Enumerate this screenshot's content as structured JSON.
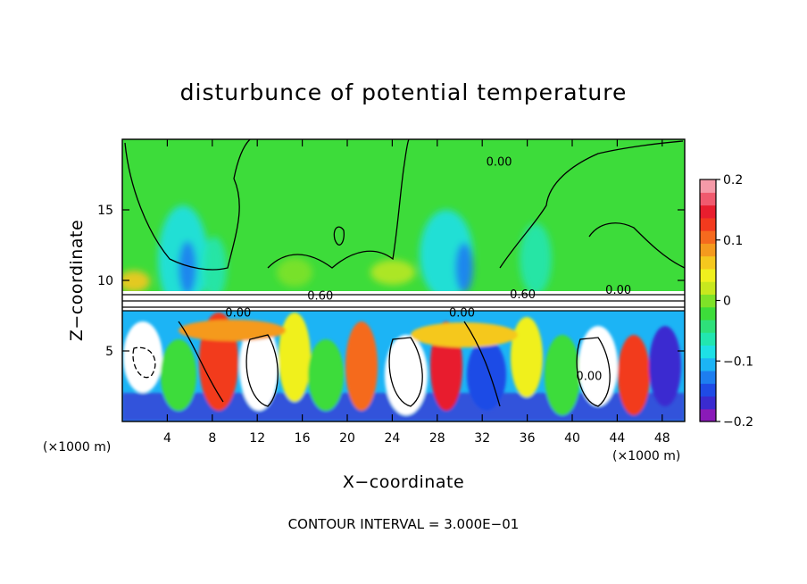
{
  "chart_data": {
    "type": "heatmap",
    "title": "disturbunce of potential temperature",
    "xlabel": "X−coordinate",
    "ylabel": "Z−coordinate",
    "x_unit": "(×1000 m)",
    "z_unit": "(×1000 m)",
    "xlim": [
      0,
      50
    ],
    "ylim": [
      0,
      20
    ],
    "x_ticks": [
      4,
      8,
      12,
      16,
      20,
      24,
      28,
      32,
      36,
      40,
      44,
      48
    ],
    "x_tick_labels": [
      "4",
      "8",
      "12",
      "16",
      "20",
      "24",
      "28",
      "32",
      "36",
      "40",
      "44",
      "48"
    ],
    "y_ticks": [
      5,
      10,
      15
    ],
    "y_tick_labels": [
      "5",
      "10",
      "15"
    ],
    "colorbar": {
      "range": [
        -0.2,
        0.2
      ],
      "ticks": [
        -0.2,
        -0.1,
        0,
        0.1,
        0.2
      ],
      "tick_labels": [
        "−0.2",
        "−0.1",
        "0",
        "0.1",
        "0.2"
      ],
      "colors": [
        "#8a1ab8",
        "#3a2bd0",
        "#1f4be6",
        "#1d7ef0",
        "#1cb4f5",
        "#1ee0e6",
        "#22e6b0",
        "#2ee07a",
        "#3ddc3a",
        "#7ee228",
        "#c8e81e",
        "#f0f01e",
        "#f5c81e",
        "#f59a1e",
        "#f56a1e",
        "#f23a1e",
        "#e81e2e",
        "#f05a6e",
        "#f59aa8"
      ]
    },
    "contour_labels": [
      {
        "text": "0.00",
        "x": 33.5,
        "z": 18.4
      },
      {
        "text": "0.60",
        "x": 17.6,
        "z": 8.9
      },
      {
        "text": "0.60",
        "x": 35.6,
        "z": 9.0
      },
      {
        "text": "0.00",
        "x": 44.1,
        "z": 9.3
      },
      {
        "text": "0.00",
        "x": 10.3,
        "z": 7.7
      },
      {
        "text": "0.00",
        "x": 30.2,
        "z": 7.7
      },
      {
        "text": "0.00",
        "x": 41.5,
        "z": 3.2
      }
    ],
    "contour_interval_text": "CONTOUR INTERVAL = 3.000E−01"
  }
}
